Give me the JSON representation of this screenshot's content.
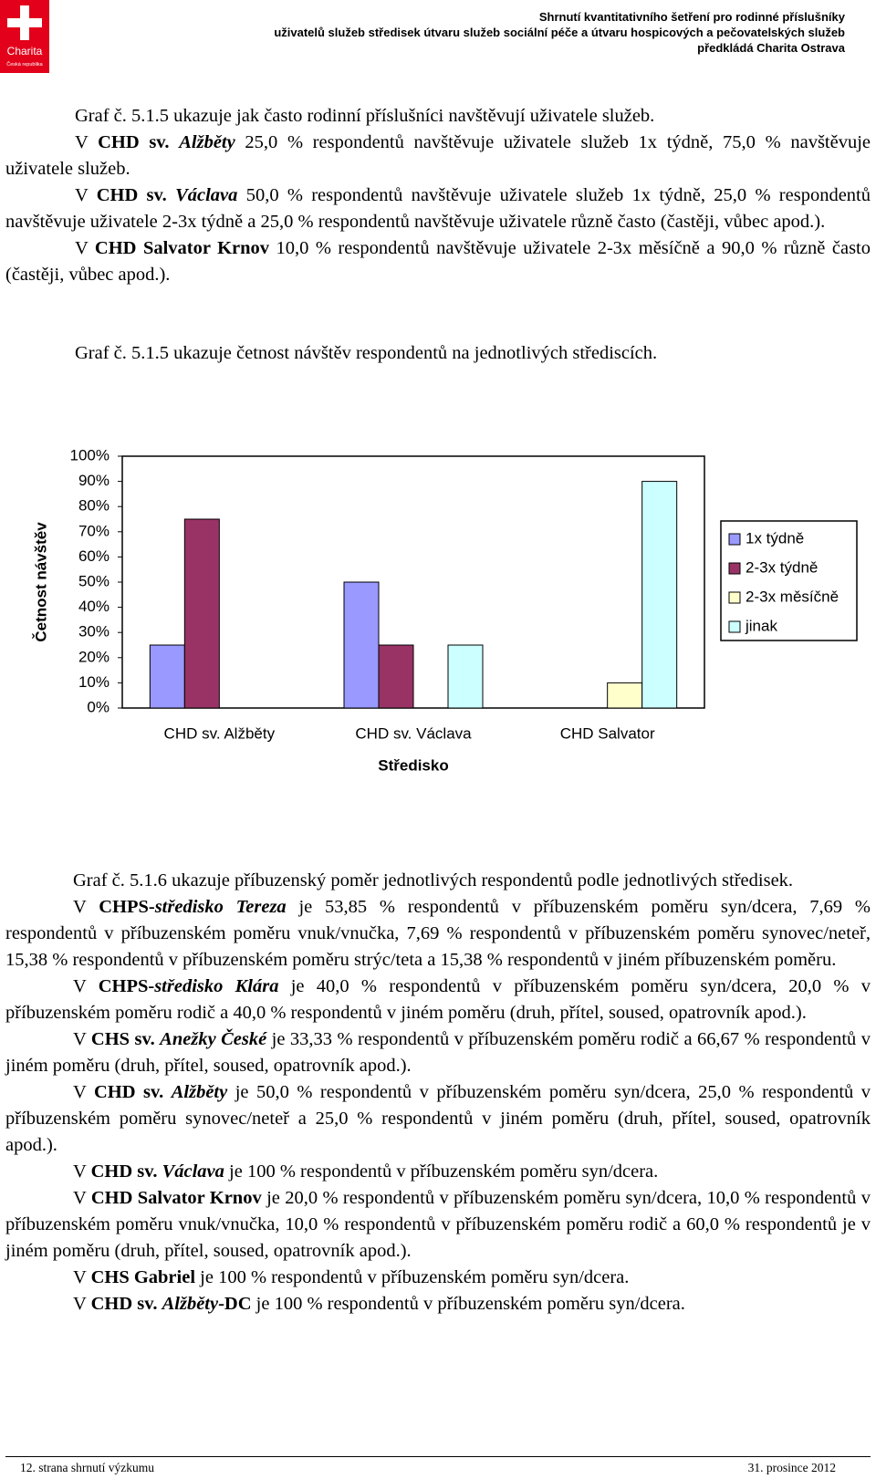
{
  "header": {
    "logo_title": "Charita",
    "logo_subtitle": "Česká republika",
    "lines": [
      "Shrnutí kvantitativního šetření pro rodinné příslušníky",
      "uživatelů služeb středisek útvaru služeb sociální péče a útvaru hospicových a pečovatelských služeb",
      "předkládá Charita Ostrava"
    ]
  },
  "section1": {
    "paragraphs": [
      [
        "Graf č. 5.1.5 ukazuje jak často rodinní příslušníci navštěvují uživatele služeb."
      ],
      [
        "V ",
        {
          "b": "CHD sv."
        },
        " ",
        {
          "bi": "Alžběty"
        },
        " 25,0 % respondentů navštěvuje uživatele služeb 1x týdně, 75,0 % navštěvuje uživatele služeb."
      ],
      [
        "V ",
        {
          "b": "CHD sv."
        },
        " ",
        {
          "bi": "Václava"
        },
        " 50,0 % respondentů navštěvuje uživatele služeb 1x týdně, 25,0 % respondentů navštěvuje uživatele 2-3x týdně a 25,0 % respondentů navštěvuje uživatele různě často (častěji, vůbec apod.)."
      ],
      [
        "V ",
        {
          "b": "CHD Salvator Krnov"
        },
        " 10,0 % respondentů navštěvuje uživatele 2-3x měsíčně a 90,0 % různě často (častěji, vůbec apod.)."
      ]
    ]
  },
  "chart_caption": "Graf č. 5.1.5 ukazuje četnost návštěv respondentů na jednotlivých střediscích.",
  "chart_data": {
    "type": "bar",
    "x_label": "Středisko",
    "y_label": "Četnost návštěv",
    "categories": [
      "CHD sv. Alžběty",
      "CHD sv. Václava",
      "CHD Salvator"
    ],
    "series": [
      {
        "name": "1x týdně",
        "color": "#9999ff",
        "values": [
          25,
          50,
          0
        ]
      },
      {
        "name": "2-3x týdně",
        "color": "#993366",
        "values": [
          75,
          25,
          0
        ]
      },
      {
        "name": "2-3x měsíčně",
        "color": "#ffffcc",
        "values": [
          0,
          0,
          10
        ]
      },
      {
        "name": "jinak",
        "color": "#ccffff",
        "values": [
          0,
          25,
          90
        ]
      }
    ],
    "ylim": [
      0,
      100
    ],
    "yticks": [
      {
        "value": 0,
        "label": "0%"
      },
      {
        "value": 10,
        "label": "10%"
      },
      {
        "value": 20,
        "label": "20%"
      },
      {
        "value": 30,
        "label": "30%"
      },
      {
        "value": 40,
        "label": "40%"
      },
      {
        "value": 50,
        "label": "50%"
      },
      {
        "value": 60,
        "label": "60%"
      },
      {
        "value": 70,
        "label": "70%"
      },
      {
        "value": 80,
        "label": "80%"
      },
      {
        "value": 90,
        "label": "90%"
      },
      {
        "value": 100,
        "label": "100%"
      }
    ],
    "grid": false,
    "legend": "right"
  },
  "section2": {
    "paragraphs": [
      [
        "Graf č. 5.1.6 ukazuje příbuzenský poměr jednotlivých respondentů podle jednotlivých středisek."
      ],
      [
        "V ",
        {
          "b": "CHPS-"
        },
        {
          "bi": "středisko Tereza"
        },
        " je 53,85 % respondentů v příbuzenském poměru syn/dcera, 7,69 % respondentů v příbuzenském poměru vnuk/vnučka, 7,69 % respondentů v příbuzenském poměru synovec/neteř, 15,38 % respondentů v příbuzenském poměru strýc/teta a 15,38 % respondentů v jiném příbuzenském poměru."
      ],
      [
        "V ",
        {
          "b": "CHPS-"
        },
        {
          "bi": "středisko Klára"
        },
        " je 40,0 % respondentů v příbuzenském poměru syn/dcera, 20,0 % v příbuzenském poměru rodič a 40,0 % respondentů v jiném poměru (druh, přítel, soused, opatrovník apod.)."
      ],
      [
        "V ",
        {
          "b": "CHS sv."
        },
        " ",
        {
          "bi": "Anežky České"
        },
        " je 33,33 % respondentů v příbuzenském poměru rodič a 66,67 % respondentů v jiném poměru (druh, přítel, soused, opatrovník apod.)."
      ],
      [
        "V ",
        {
          "b": "CHD sv."
        },
        " ",
        {
          "bi": "Alžběty"
        },
        " je 50,0 % respondentů v příbuzenském poměru syn/dcera, 25,0 % respondentů v příbuzenském poměru synovec/neteř a 25,0 % respondentů v jiném poměru (druh, přítel, soused, opatrovník apod.)."
      ],
      [
        "V ",
        {
          "b": "CHD sv."
        },
        " ",
        {
          "bi": "Václava"
        },
        " je 100 % respondentů v příbuzenském poměru syn/dcera."
      ],
      [
        "V ",
        {
          "b": "CHD Salvator Krnov"
        },
        " je 20,0 % respondentů v příbuzenském poměru syn/dcera, 10,0 % respondentů v příbuzenském poměru vnuk/vnučka, 10,0 % respondentů v příbuzenském poměru rodič a 60,0 % respondentů je v jiném poměru (druh, přítel, soused, opatrovník apod.)."
      ],
      [
        "V ",
        {
          "b": "CHS Gabriel"
        },
        " je 100 % respondentů v příbuzenském poměru syn/dcera."
      ],
      [
        "V ",
        {
          "b": "CHD sv."
        },
        " ",
        {
          "bi": "Alžběty"
        },
        {
          "b": "-DC"
        },
        " je 100 % respondentů v příbuzenském poměru syn/dcera."
      ]
    ]
  },
  "footer": {
    "left": "12. strana shrnutí výzkumu",
    "right": "31. prosince 2012"
  }
}
